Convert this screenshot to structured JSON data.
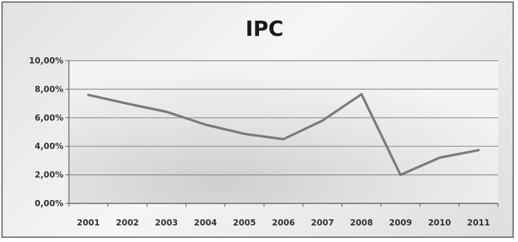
{
  "chart_data": {
    "type": "line",
    "title": "IPC",
    "xlabel": "",
    "ylabel": "",
    "categories": [
      "2001",
      "2002",
      "2003",
      "2004",
      "2005",
      "2006",
      "2007",
      "2008",
      "2009",
      "2010",
      "2011"
    ],
    "series": [
      {
        "values": [
          7.6,
          6.99,
          6.42,
          5.52,
          4.87,
          4.5,
          5.8,
          7.65,
          2.0,
          3.2,
          3.73
        ]
      }
    ],
    "ylim": [
      0,
      10
    ],
    "yticks": [
      "0,00%",
      "2,00%",
      "4,00%",
      "6,00%",
      "8,00%",
      "10,00%"
    ],
    "grid": true,
    "legend": "none",
    "line_color": "#7a7a7a"
  }
}
